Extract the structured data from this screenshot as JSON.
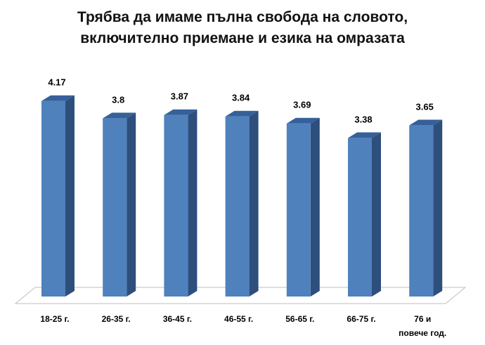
{
  "chart_data": {
    "type": "bar",
    "title": [
      "Трябва да имаме пълна свобода на словото,",
      "включително приемане и езика на омразата"
    ],
    "categories": [
      [
        "18-25 г."
      ],
      [
        "26-35 г."
      ],
      [
        "36-45 г."
      ],
      [
        "46-55 г."
      ],
      [
        "56-65 г."
      ],
      [
        "66-75 г."
      ],
      [
        "76 и",
        "повече год."
      ]
    ],
    "values": [
      4.17,
      3.8,
      3.87,
      3.84,
      3.69,
      3.38,
      3.65
    ],
    "ylim": [
      0,
      4.6
    ],
    "grid": false,
    "bar_style": "3d-cylinder",
    "colors": {
      "bar_front": "#4F81BD",
      "bar_side": "#2E4F7C",
      "bar_top": "#35609A",
      "floor": "#ffffff",
      "floor_stroke": "#bfbfbf"
    }
  }
}
